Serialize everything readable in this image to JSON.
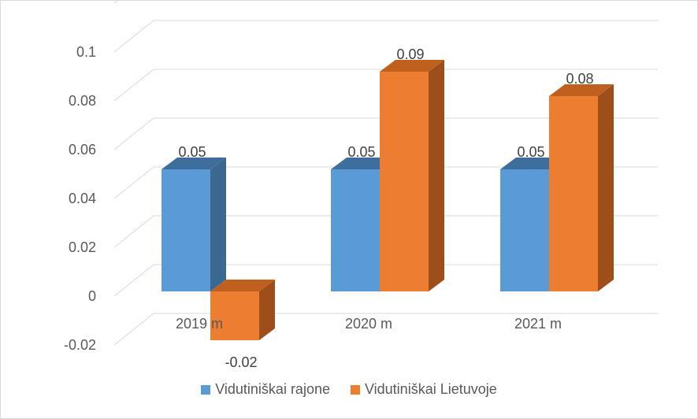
{
  "chart_data": {
    "type": "bar",
    "categories": [
      "2019 m",
      "2020 m",
      "2021 m"
    ],
    "series": [
      {
        "name": "Vidutiniškai rajone",
        "values": [
          0.05,
          0.05,
          0.05
        ],
        "labels": [
          "0.05",
          "0.05",
          "0.05"
        ],
        "color": "#5b9bd5",
        "side_color": "#3a6891",
        "top_color": "#3e6f9c"
      },
      {
        "name": "Vidutiniškai Lietuvoje",
        "values": [
          -0.02,
          0.09,
          0.08
        ],
        "labels": [
          "-0.02",
          "0.09",
          "0.08"
        ],
        "color": "#ed7d31",
        "side_color": "#9e4e1b",
        "top_color": "#c0601f"
      }
    ],
    "y_ticks": [
      "-0.02",
      "0",
      "0.02",
      "0.04",
      "0.06",
      "0.08",
      "0.1"
    ],
    "ylim": [
      -0.02,
      0.12
    ],
    "grid": true,
    "legend_position": "bottom",
    "style": "3d-column"
  }
}
